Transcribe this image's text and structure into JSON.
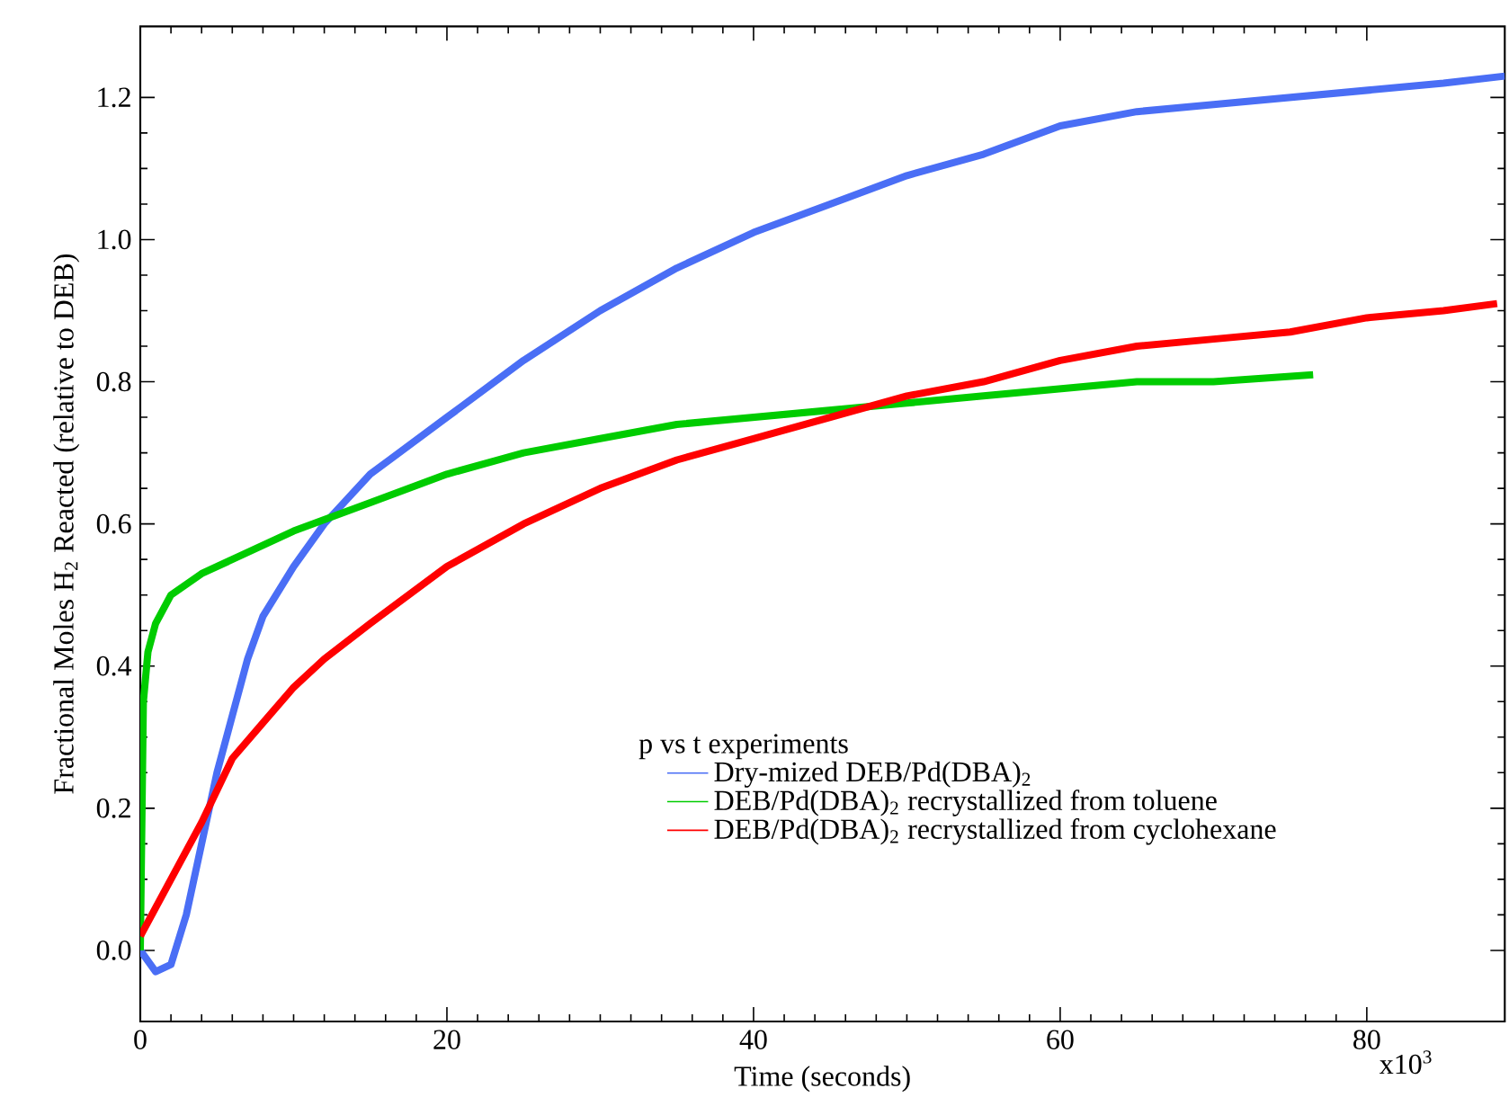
{
  "chart_data": {
    "type": "line",
    "xlabel": "Time (seconds)",
    "ylabel": "Fractional Moles H$_{2}$ Reacted (relative to DEB)",
    "legend_title": "p vs t experiments",
    "legend": "bottom right",
    "xlim": [
      0,
      89
    ],
    "ylim": [
      -0.1,
      1.3
    ],
    "xticks": [
      0,
      20,
      40,
      60,
      80
    ],
    "annotations": [
      "x10$^{3}$"
    ],
    "yticks": [
      {
        "value": 0,
        "label": "0.0"
      },
      0.2,
      0.4,
      0.6,
      0.8,
      {
        "value": 1,
        "label": "1.0"
      },
      1.2
    ],
    "grid": false,
    "marker": "none",
    "line_style": "solid",
    "series": [
      {
        "name": "Dry-mized DEB/Pd(DBA)$_{2}$",
        "color": "#4a6ef5",
        "x": [
          0,
          1,
          2,
          3,
          4,
          5,
          6,
          7,
          8,
          10,
          12,
          15,
          20,
          25,
          30,
          35,
          40,
          45,
          50,
          55,
          60,
          65,
          70,
          75,
          80,
          85,
          89
        ],
        "values": [
          0.0,
          -0.03,
          -0.02,
          0.05,
          0.15,
          0.25,
          0.33,
          0.41,
          0.47,
          0.54,
          0.6,
          0.67,
          0.75,
          0.83,
          0.9,
          0.96,
          1.01,
          1.05,
          1.09,
          1.12,
          1.16,
          1.18,
          1.19,
          1.2,
          1.21,
          1.22,
          1.23
        ]
      },
      {
        "name": "DEB/Pd(DBA)$_{2}$ recrystallized from toluene",
        "color": "#00cc00",
        "x": [
          0,
          0.2,
          0.5,
          1,
          2,
          4,
          6,
          10,
          15,
          20,
          25,
          30,
          35,
          40,
          45,
          50,
          55,
          60,
          65,
          70,
          76.5
        ],
        "values": [
          0.0,
          0.35,
          0.42,
          0.46,
          0.5,
          0.53,
          0.55,
          0.59,
          0.63,
          0.67,
          0.7,
          0.72,
          0.74,
          0.75,
          0.76,
          0.77,
          0.78,
          0.79,
          0.8,
          0.8,
          0.81
        ]
      },
      {
        "name": "DEB/Pd(DBA)$_{2}$ recrystallized from cyclohexane",
        "color": "#ff0000",
        "x": [
          0,
          2,
          4,
          6,
          8,
          10,
          12,
          15,
          20,
          25,
          30,
          35,
          40,
          45,
          50,
          55,
          60,
          65,
          70,
          75,
          80,
          85,
          88.5
        ],
        "values": [
          0.02,
          0.1,
          0.18,
          0.27,
          0.32,
          0.37,
          0.41,
          0.46,
          0.54,
          0.6,
          0.65,
          0.69,
          0.72,
          0.75,
          0.78,
          0.8,
          0.83,
          0.85,
          0.86,
          0.87,
          0.89,
          0.9,
          0.91
        ]
      }
    ]
  }
}
